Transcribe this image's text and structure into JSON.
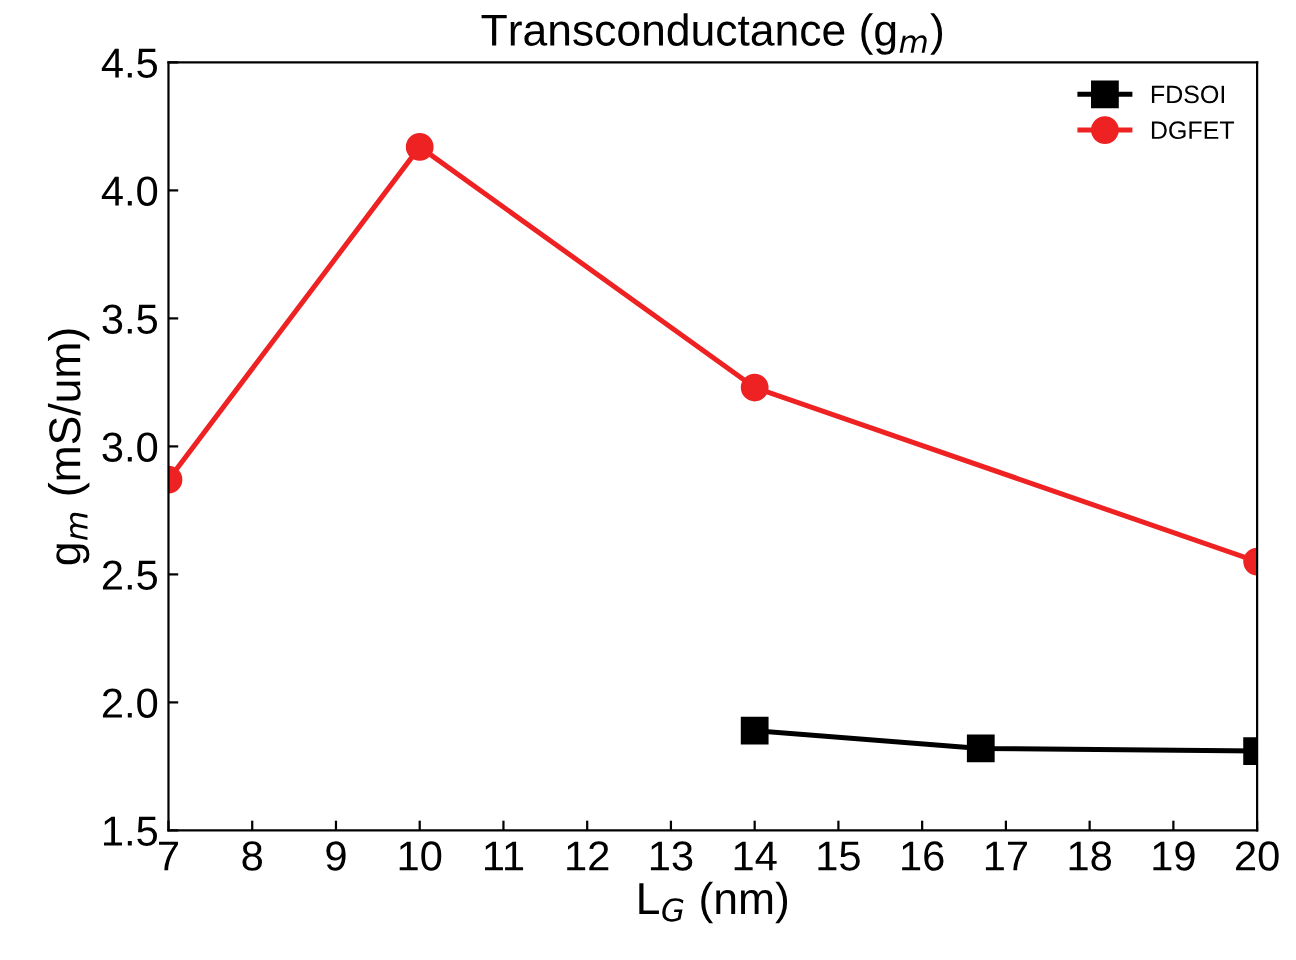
{
  "chart_data": {
    "type": "line",
    "title": "Transconductance (g$_{m}$)",
    "xlabel": "L$_{G}$ (nm)",
    "ylabel": "g$_{m}$ (mS/um)",
    "series": [
      {
        "name": "FDSOI",
        "color": "#000000",
        "marker": "square",
        "x": [
          14,
          16.7,
          20
        ],
        "values": [
          1.89,
          1.82,
          1.81
        ]
      },
      {
        "name": "DGFET",
        "color": "#ee2222",
        "marker": "circle",
        "x": [
          7,
          10,
          14,
          20
        ],
        "values": [
          2.87,
          4.17,
          3.23,
          2.55
        ]
      }
    ],
    "xlim": [
      7,
      20
    ],
    "xticks": [
      7,
      8,
      9,
      10,
      11,
      12,
      13,
      14,
      15,
      16,
      17,
      18,
      19,
      20
    ],
    "ylim": [
      1.5,
      4.5
    ],
    "yticks": [
      {
        "value": 1.5,
        "label": "1.5"
      },
      {
        "value": 2,
        "label": "2.0"
      },
      {
        "value": 2.5,
        "label": "2.5"
      },
      {
        "value": 3,
        "label": "3.0"
      },
      {
        "value": 3.5,
        "label": "3.5"
      },
      {
        "value": 4,
        "label": "4.0"
      },
      {
        "value": 4.5,
        "label": "4.5"
      }
    ],
    "legend": "top right",
    "grid": false,
    "line_style": "solid"
  }
}
